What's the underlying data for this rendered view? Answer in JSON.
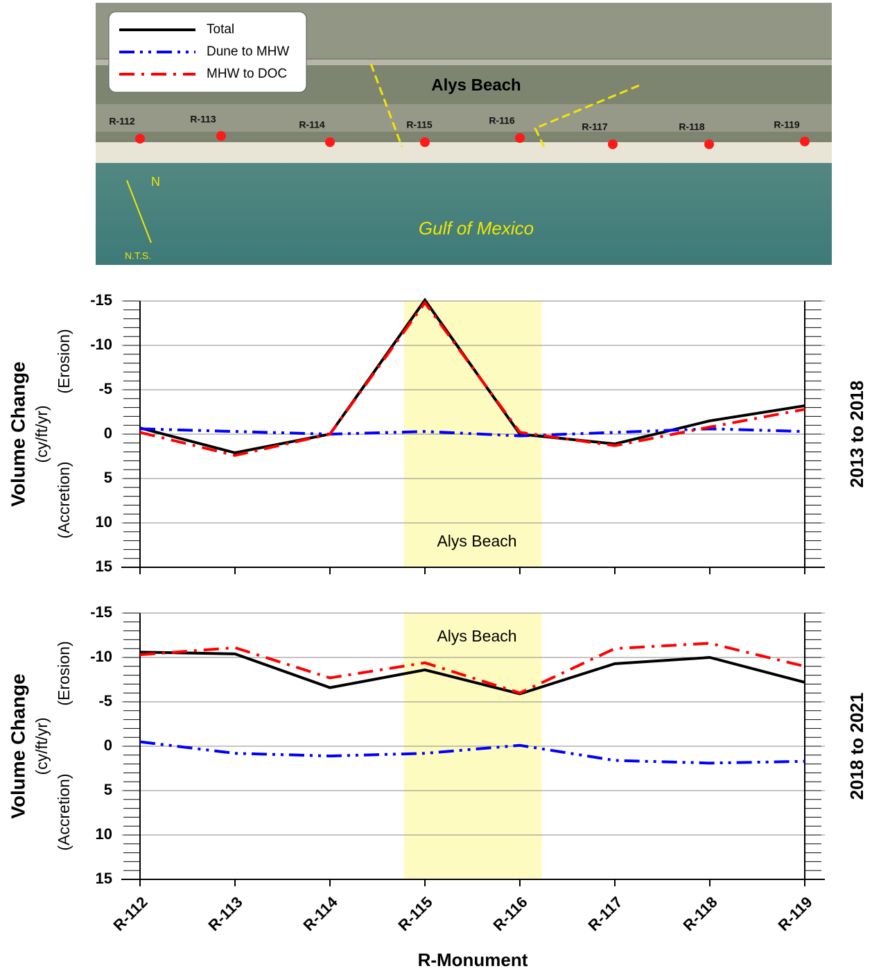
{
  "map": {
    "title": "Alys Beach",
    "water": "Gulf of Mexico",
    "north": "N",
    "scale": "N.T.S.",
    "monuments": [
      "R-112",
      "R-113",
      "R-114",
      "R-115",
      "R-116",
      "R-117",
      "R-118",
      "R-119"
    ]
  },
  "chart_data": [
    {
      "type": "line",
      "period": "2013 to 2018",
      "ylabel": "Volume Change",
      "yunits": "(cy/ft/yr)",
      "ylabel_top": "(Erosion)",
      "ylabel_bottom": "(Accretion)",
      "annotation": "Alys Beach",
      "ylim": [
        15,
        -15
      ],
      "yticks": [
        -15,
        -10,
        -5,
        0,
        5,
        10,
        15
      ],
      "grid": true,
      "series": [
        {
          "name": "Total",
          "color": "#000000",
          "style": "solid",
          "values": [
            -0.7,
            2.1,
            0,
            -15.1,
            0,
            1.1,
            -1.5,
            -3.2
          ]
        },
        {
          "name": "Dune to MHW",
          "color": "#0000ff",
          "style": "dash-dot-dot",
          "values": [
            -0.6,
            -0.3,
            0,
            -0.3,
            0.2,
            -0.2,
            -0.6,
            -0.3
          ]
        },
        {
          "name": "MHW to DOC",
          "color": "#ff0000",
          "style": "dash-dot",
          "values": [
            -0.2,
            2.4,
            0,
            -14.8,
            -0.2,
            1.3,
            -0.8,
            -2.8
          ]
        }
      ]
    },
    {
      "type": "line",
      "period": "2018 to 2021",
      "ylabel": "Volume Change",
      "yunits": "(cy/ft/yr)",
      "ylabel_top": "(Erosion)",
      "ylabel_bottom": "(Accretion)",
      "annotation": "Alys Beach",
      "xlabel": "R-Monument",
      "categories": [
        "R-112",
        "R-113",
        "R-114",
        "R-115",
        "R-116",
        "R-117",
        "R-118",
        "R-119"
      ],
      "ylim": [
        15,
        -15
      ],
      "yticks": [
        -15,
        -10,
        -5,
        0,
        5,
        10,
        15
      ],
      "grid": true,
      "series": [
        {
          "color": "#000000",
          "style": "solid",
          "values": [
            -10.6,
            -10.4,
            -6.6,
            -8.6,
            -5.9,
            -9.3,
            -10.0,
            -7.2
          ]
        },
        {
          "color": "#0000ff",
          "style": "dash-dot-dot",
          "values": [
            -0.5,
            0.8,
            1.1,
            0.8,
            -0.1,
            1.6,
            1.9,
            1.7
          ]
        },
        {
          "color": "#ff0000",
          "style": "dash-dot",
          "values": [
            -10.3,
            -11.1,
            -7.7,
            -9.4,
            -6.0,
            -11.0,
            -11.6,
            -9.0
          ]
        }
      ]
    }
  ]
}
